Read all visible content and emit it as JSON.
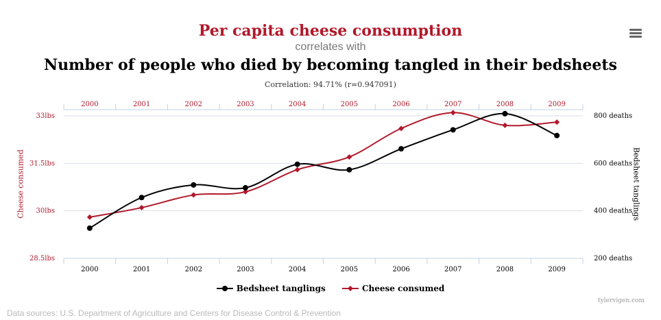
{
  "header": {
    "title": "Per capita cheese consumption",
    "subtitle": "correlates with",
    "title2": "Number of people who died by becoming tangled in their bedsheets",
    "correlation": "Correlation: 94.71% (r=0.947091)"
  },
  "colors": {
    "cheese": "#b2182b",
    "bedsheet": "#000000",
    "grid": "#d8dde6",
    "axis": "#c0d0e0",
    "subtitle": "#777777",
    "sources": "#b9b9b9",
    "credit": "#999999",
    "menu": "#666666"
  },
  "menu_icon": "hamburger-icon",
  "legend": [
    {
      "label": "Bedsheet tanglings",
      "icon": "circle-marker"
    },
    {
      "label": "Cheese consumed",
      "icon": "diamond-marker"
    }
  ],
  "credit": "tylervigen.com",
  "sources": "Data sources: U.S. Department of Agriculture and Centers for Disease Control & Prevention",
  "chart_data": {
    "type": "line",
    "categories": [
      "2000",
      "2001",
      "2002",
      "2003",
      "2004",
      "2005",
      "2006",
      "2007",
      "2008",
      "2009"
    ],
    "series": [
      {
        "name": "Cheese consumed",
        "axis": "left",
        "values": [
          29.8,
          30.1,
          30.5,
          30.6,
          31.3,
          31.7,
          32.6,
          33.1,
          32.7,
          32.8
        ]
      },
      {
        "name": "Bedsheet tanglings",
        "axis": "right",
        "values": [
          327,
          456,
          509,
          497,
          596,
          573,
          661,
          741,
          809,
          717
        ]
      }
    ],
    "yleft": {
      "label": "Cheese consumed",
      "ticks": [
        "28.5lbs",
        "30lbs",
        "31.5lbs",
        "33lbs"
      ],
      "tick_values": [
        28.5,
        30,
        31.5,
        33
      ],
      "range": [
        28.5,
        33.0
      ]
    },
    "yright": {
      "label": "Bedsheet tanglings",
      "ticks": [
        "200 deaths",
        "400 deaths",
        "600 deaths",
        "800 deaths"
      ],
      "tick_values": [
        200,
        400,
        600,
        800
      ],
      "range": [
        200,
        800
      ]
    },
    "grid": true,
    "legend_position": "bottom"
  }
}
